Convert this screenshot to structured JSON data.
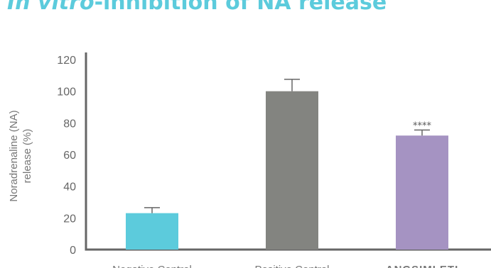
{
  "title": {
    "italic_part": "In vitro",
    "rest": "-inhibition of NA release"
  },
  "chart_data": {
    "type": "bar",
    "title": "In vitro-inhibition of NA release",
    "ylabel": "Noradrenaline (NA) release (%)",
    "ylabel_lines": [
      "Noradrenaline (NA)",
      "release (%)"
    ],
    "xlabel": "",
    "ylim": [
      0,
      120
    ],
    "yticks": [
      0,
      20,
      40,
      60,
      80,
      100,
      120
    ],
    "categories": [
      "Negative Control",
      "Positive Control",
      "ANGSIMLETI"
    ],
    "values": [
      23,
      100,
      72
    ],
    "errors": [
      3.5,
      7.5,
      3.5
    ],
    "annotations": [
      "",
      "",
      "****"
    ],
    "colors": [
      "#5ccbdc",
      "#838480",
      "#a593c2"
    ],
    "grid": false,
    "legend": "none"
  }
}
